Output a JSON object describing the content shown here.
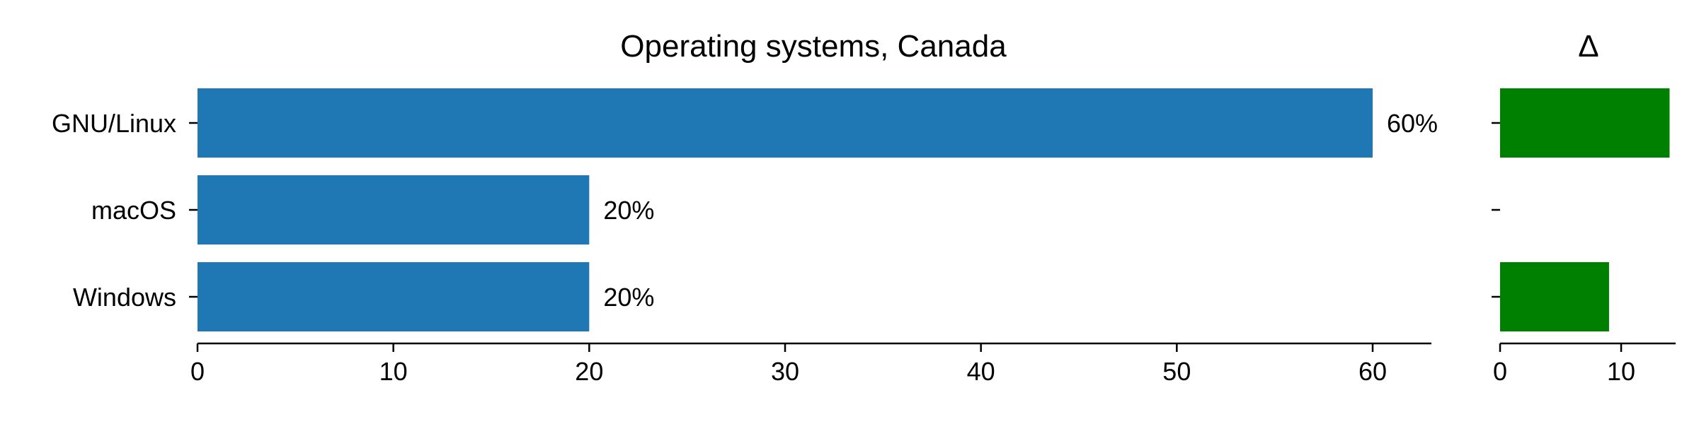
{
  "chart_data": [
    {
      "type": "bar",
      "orientation": "horizontal",
      "title": "Operating systems, Canada",
      "categories": [
        "GNU/Linux",
        "macOS",
        "Windows"
      ],
      "values": [
        60,
        20,
        20
      ],
      "data_labels": [
        "60%",
        "20%",
        "20%"
      ],
      "xlim": [
        0,
        63
      ],
      "xticks": [
        0,
        10,
        20,
        30,
        40,
        50,
        60
      ],
      "grid": false,
      "color": "#1f77b4"
    },
    {
      "type": "bar",
      "orientation": "horizontal",
      "title": "Δ",
      "categories": [
        "GNU/Linux",
        "macOS",
        "Windows"
      ],
      "values": [
        14,
        0,
        9
      ],
      "xlim": [
        0,
        14.5
      ],
      "xticks": [
        0,
        10
      ],
      "grid": false,
      "color": "#008000"
    }
  ]
}
